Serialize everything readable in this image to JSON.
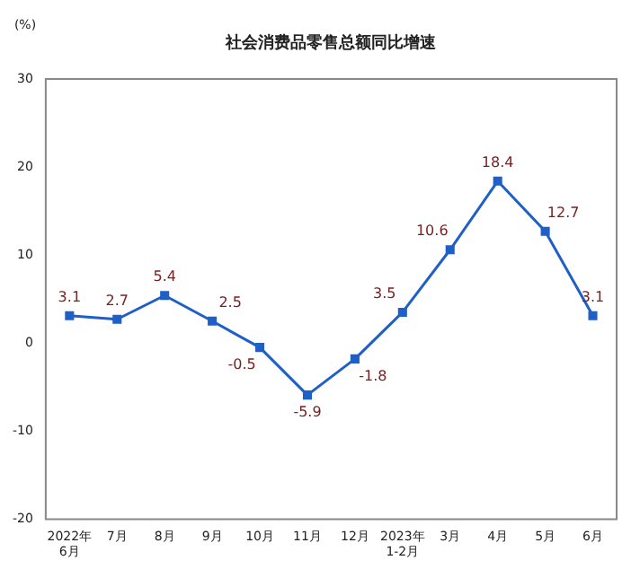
{
  "chart_data": {
    "type": "line",
    "title": "社会消费品零售总额同比增速",
    "ylabel": "(%)",
    "categories": [
      "2022年\n6月",
      "7月",
      "8月",
      "9月",
      "10月",
      "11月",
      "12月",
      "2023年\n1-2月",
      "3月",
      "4月",
      "5月",
      "6月"
    ],
    "series": [
      {
        "color": "#1f5fc8",
        "values": [
          3.1,
          2.7,
          5.4,
          2.5,
          -0.5,
          -5.9,
          -1.8,
          3.5,
          10.6,
          18.4,
          12.7,
          3.1
        ]
      }
    ],
    "ylim": [
      -20,
      30
    ],
    "yticks": [
      -20,
      -10,
      0,
      10,
      20,
      30
    ],
    "grid": false,
    "legend": false,
    "marker": "square",
    "line_style": "solid",
    "data_labels": true
  }
}
